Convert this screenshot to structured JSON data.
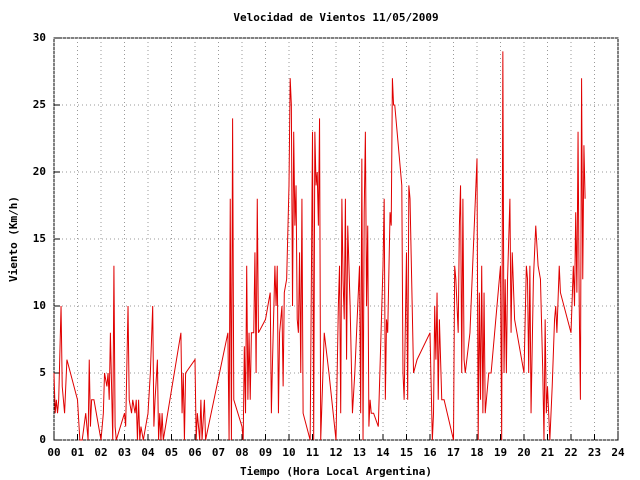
{
  "chart_data": {
    "type": "line",
    "title": "Velocidad de Vientos 11/05/2009",
    "x_label": "Tiempo (Hora Local Argentina)",
    "y_label": "Viento (Km/h)",
    "color": "#e00000",
    "grid": true,
    "xlim": [
      0,
      24
    ],
    "ylim": [
      0,
      30
    ],
    "xticks": [
      {
        "value": 0,
        "label": "00"
      },
      {
        "value": 1,
        "label": "01"
      },
      {
        "value": 2,
        "label": "02"
      },
      {
        "value": 3,
        "label": "03"
      },
      {
        "value": 4,
        "label": "04"
      },
      {
        "value": 5,
        "label": "05"
      },
      {
        "value": 6,
        "label": "06"
      },
      {
        "value": 7,
        "label": "07"
      },
      {
        "value": 8,
        "label": "08"
      },
      {
        "value": 9,
        "label": "09"
      },
      10,
      11,
      12,
      13,
      14,
      15,
      16,
      17,
      18,
      19,
      20,
      21,
      22,
      23,
      24
    ],
    "yticks": [
      0,
      5,
      10,
      15,
      20,
      25,
      30
    ],
    "x": [
      0.0,
      0.05,
      0.1,
      0.15,
      0.2,
      0.3,
      0.35,
      0.45,
      0.55,
      1.0,
      1.1,
      1.2,
      1.35,
      1.45,
      1.5,
      1.55,
      1.6,
      1.7,
      2.0,
      2.1,
      2.15,
      2.25,
      2.3,
      2.35,
      2.4,
      2.5,
      2.55,
      2.6,
      2.65,
      3.0,
      3.05,
      3.15,
      3.2,
      3.3,
      3.35,
      3.45,
      3.5,
      3.55,
      3.6,
      3.65,
      3.7,
      3.8,
      4.0,
      4.1,
      4.2,
      4.25,
      4.3,
      4.4,
      4.45,
      4.5,
      4.55,
      4.6,
      4.65,
      5.4,
      5.45,
      5.5,
      5.55,
      5.6,
      6.0,
      6.05,
      6.1,
      6.15,
      6.2,
      6.25,
      6.3,
      6.4,
      6.45,
      7.4,
      7.45,
      7.5,
      7.55,
      7.6,
      7.65,
      8.0,
      8.05,
      8.1,
      8.15,
      8.2,
      8.25,
      8.3,
      8.35,
      8.4,
      8.5,
      8.55,
      8.6,
      8.65,
      8.7,
      9.0,
      9.1,
      9.2,
      9.25,
      9.3,
      9.4,
      9.45,
      9.5,
      9.55,
      9.6,
      9.7,
      9.75,
      9.8,
      9.9,
      10.0,
      10.05,
      10.1,
      10.15,
      10.2,
      10.25,
      10.3,
      10.35,
      10.4,
      10.45,
      10.5,
      10.55,
      10.6,
      10.9,
      11.0,
      11.05,
      11.1,
      11.15,
      11.2,
      11.25,
      11.3,
      11.35,
      11.5,
      11.7,
      12.0,
      12.1,
      12.15,
      12.2,
      12.25,
      12.3,
      12.35,
      12.4,
      12.45,
      12.5,
      12.6,
      12.7,
      12.8,
      13.0,
      13.05,
      13.1,
      13.15,
      13.2,
      13.25,
      13.3,
      13.35,
      13.4,
      13.45,
      13.5,
      13.6,
      13.8,
      14.0,
      14.05,
      14.1,
      14.15,
      14.2,
      14.3,
      14.35,
      14.4,
      14.45,
      14.5,
      14.8,
      14.85,
      14.9,
      15.0,
      15.05,
      15.1,
      15.15,
      15.3,
      15.45,
      16.0,
      16.05,
      16.1,
      16.15,
      16.2,
      16.25,
      16.3,
      16.35,
      16.4,
      16.5,
      16.6,
      17.0,
      17.05,
      17.1,
      17.2,
      17.25,
      17.3,
      17.35,
      17.4,
      17.45,
      17.5,
      17.7,
      18.0,
      18.05,
      18.1,
      18.15,
      18.2,
      18.25,
      18.3,
      18.35,
      18.5,
      18.6,
      19.0,
      19.05,
      19.1,
      19.15,
      19.2,
      19.25,
      19.3,
      19.4,
      19.45,
      19.5,
      19.6,
      19.7,
      20.0,
      20.1,
      20.15,
      20.2,
      20.25,
      20.3,
      20.4,
      20.5,
      20.6,
      20.7,
      20.8,
      20.85,
      20.9,
      20.95,
      21.0,
      21.1,
      21.2,
      21.3,
      21.35,
      21.4,
      21.5,
      21.55,
      22.0,
      22.1,
      22.15,
      22.2,
      22.25,
      22.3,
      22.35,
      22.4,
      22.45,
      22.5,
      22.55,
      22.6
    ],
    "values": [
      5,
      2,
      3,
      2,
      3,
      10,
      4,
      2,
      6,
      3,
      0,
      0,
      2,
      0,
      6,
      1,
      3,
      3,
      0,
      2,
      5,
      4,
      5,
      3,
      8,
      0,
      13,
      1,
      0,
      2,
      1,
      10,
      3,
      2,
      3,
      2,
      3,
      0,
      3,
      0,
      1,
      0,
      2,
      5,
      10,
      1,
      3,
      6,
      0,
      2,
      0,
      2,
      0,
      8,
      2,
      5,
      0,
      5,
      6,
      0,
      2,
      1,
      0,
      3,
      0,
      3,
      0,
      8,
      0,
      18,
      0,
      24,
      3,
      1,
      0,
      7,
      2,
      13,
      3,
      8,
      3,
      8,
      8,
      14,
      5,
      18,
      8,
      9,
      10,
      11,
      2,
      6,
      13,
      10,
      13,
      2,
      8,
      10,
      4,
      11,
      12,
      19,
      27,
      25,
      10,
      23,
      16,
      19,
      9,
      8,
      14,
      5,
      18,
      2,
      0,
      23,
      0,
      23,
      19,
      20,
      16,
      24,
      0,
      8,
      5,
      0,
      10,
      13,
      2,
      18,
      12,
      9,
      18,
      6,
      16,
      10,
      2,
      5,
      13,
      2,
      21,
      0,
      17,
      23,
      10,
      16,
      1,
      3,
      2,
      2,
      1,
      13,
      18,
      3,
      9,
      8,
      17,
      16,
      27,
      25,
      25,
      19,
      5,
      3,
      14,
      3,
      19,
      18,
      5,
      6,
      8,
      4,
      0,
      2,
      10,
      6,
      11,
      3,
      9,
      3,
      3,
      0,
      13,
      12,
      8,
      16,
      19,
      5,
      18,
      6,
      5,
      8,
      21,
      0,
      11,
      3,
      13,
      2,
      11,
      2,
      5,
      5,
      13,
      0,
      29,
      5,
      12,
      5,
      12,
      18,
      8,
      14,
      9,
      8,
      5,
      13,
      12,
      5,
      13,
      2,
      12,
      16,
      13,
      12,
      5,
      0,
      9,
      2,
      4,
      0,
      4,
      9,
      10,
      8,
      13,
      11,
      8,
      13,
      10,
      17,
      11,
      23,
      10,
      3,
      27,
      12,
      22,
      18
    ]
  }
}
